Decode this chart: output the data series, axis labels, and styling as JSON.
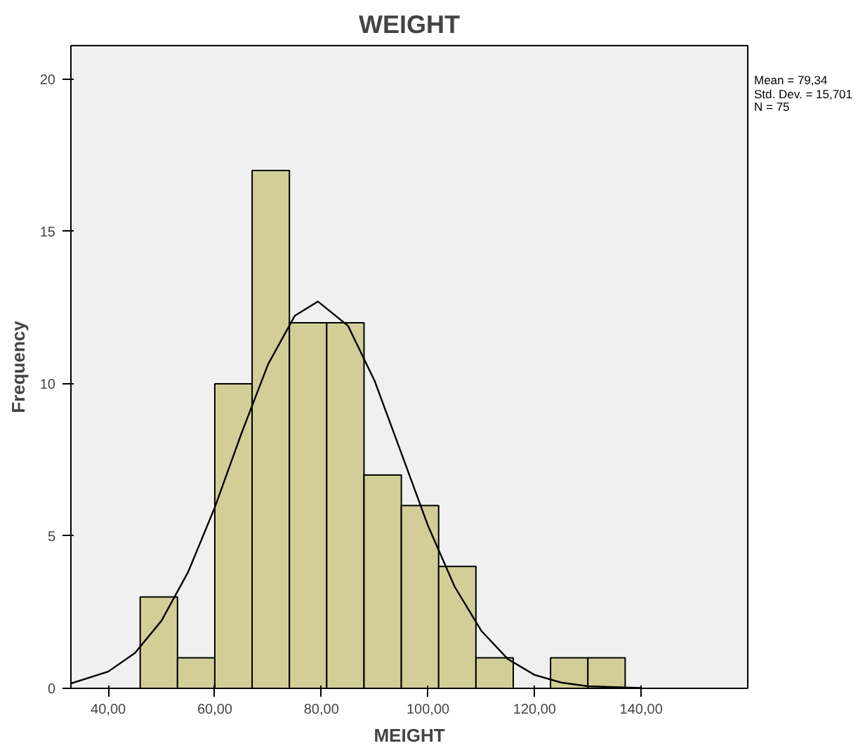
{
  "chart_data": {
    "type": "histogram",
    "title": "WEIGHT",
    "xlabel": "MEIGHT",
    "ylabel": "Frequency",
    "bins": [
      46,
      53,
      60,
      67,
      74,
      81,
      88,
      95,
      102,
      109,
      116,
      123,
      130,
      137
    ],
    "values": [
      3,
      1,
      10,
      17,
      12,
      12,
      7,
      6,
      4,
      1,
      0,
      1,
      1
    ],
    "color": "#d3ce97",
    "series": [
      {
        "type": "line",
        "color": "#000000",
        "x": [
          33,
          40,
          45,
          50,
          55,
          60,
          65,
          70,
          75,
          79.34,
          85,
          90,
          95,
          100,
          105,
          110,
          115,
          120,
          125,
          130,
          140
        ],
        "values": [
          0.16,
          0.55,
          1.16,
          2.22,
          3.82,
          5.94,
          8.37,
          10.64,
          12.23,
          12.7,
          11.9,
          10.09,
          7.72,
          5.34,
          3.34,
          1.89,
          0.96,
          0.44,
          0.19,
          0.07,
          0.01
        ]
      }
    ],
    "xlim": [
      33,
      160
    ],
    "ylim": [
      0,
      21.1
    ],
    "xticks": [
      {
        "value": 40,
        "label": "40,00"
      },
      {
        "value": 60,
        "label": "60,00"
      },
      {
        "value": 80,
        "label": "80,00"
      },
      {
        "value": 100,
        "label": "100,00"
      },
      {
        "value": 120,
        "label": "120,00"
      },
      {
        "value": 140,
        "label": "140,00"
      }
    ],
    "yticks": [
      0,
      5,
      10,
      15,
      20
    ],
    "annotations": [
      "Mean = 79,34",
      "Std. Dev. = 15,701",
      "N = 75"
    ],
    "grid": false
  }
}
